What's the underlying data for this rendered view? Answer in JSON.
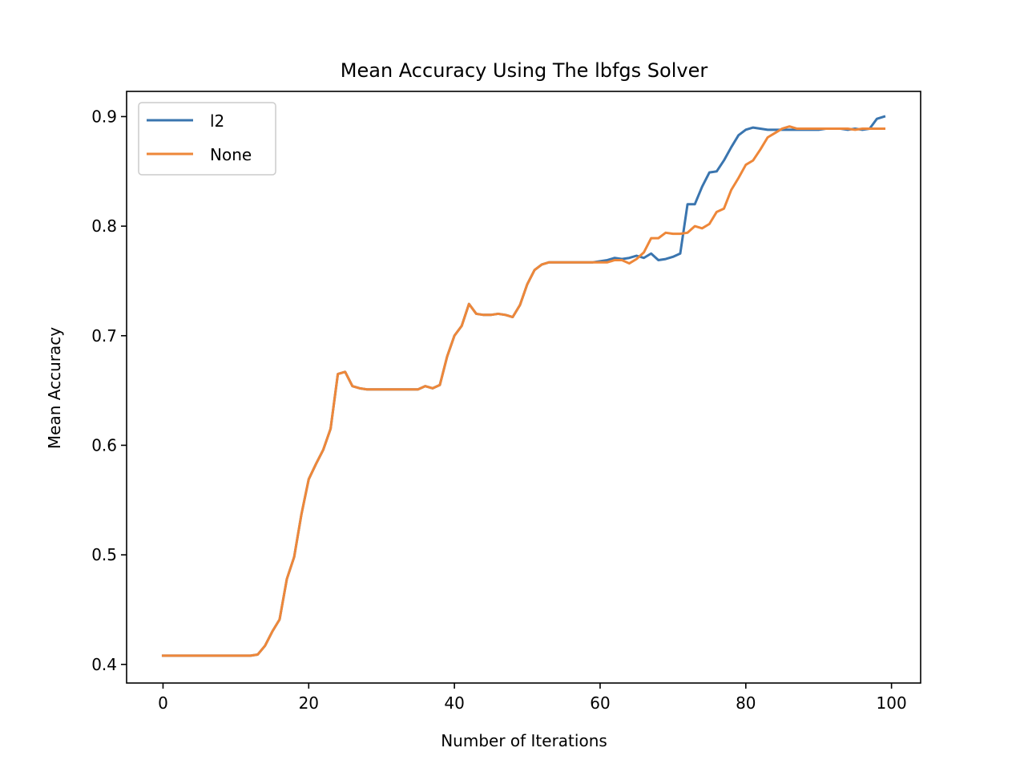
{
  "chart_data": {
    "type": "line",
    "title": "Mean Accuracy Using The lbfgs Solver",
    "xlabel": "Number of Iterations",
    "ylabel": "Mean Accuracy",
    "xlim": [
      -5,
      104
    ],
    "ylim": [
      0.383,
      0.923
    ],
    "xticks": [
      0,
      20,
      40,
      60,
      80,
      100
    ],
    "yticks": [
      0.4,
      0.5,
      0.6,
      0.7,
      0.8,
      0.9
    ],
    "grid": false,
    "legend": "upper left",
    "x_start": 0,
    "series": [
      {
        "name": "l2",
        "color": "#3a75af",
        "values": [
          0.408,
          0.408,
          0.408,
          0.408,
          0.408,
          0.408,
          0.408,
          0.408,
          0.408,
          0.408,
          0.408,
          0.408,
          0.408,
          0.409,
          0.417,
          0.43,
          0.441,
          0.478,
          0.498,
          0.537,
          0.569,
          0.583,
          0.596,
          0.615,
          0.665,
          0.667,
          0.654,
          0.652,
          0.651,
          0.651,
          0.651,
          0.651,
          0.651,
          0.651,
          0.651,
          0.651,
          0.654,
          0.652,
          0.655,
          0.681,
          0.7,
          0.709,
          0.729,
          0.72,
          0.719,
          0.719,
          0.72,
          0.719,
          0.717,
          0.728,
          0.747,
          0.76,
          0.765,
          0.767,
          0.767,
          0.767,
          0.767,
          0.767,
          0.767,
          0.767,
          0.768,
          0.769,
          0.771,
          0.77,
          0.771,
          0.773,
          0.771,
          0.775,
          0.769,
          0.77,
          0.772,
          0.775,
          0.82,
          0.82,
          0.836,
          0.849,
          0.85,
          0.86,
          0.872,
          0.883,
          0.888,
          0.89,
          0.889,
          0.888,
          0.888,
          0.888,
          0.888,
          0.888,
          0.888,
          0.888,
          0.888,
          0.889,
          0.889,
          0.889,
          0.888,
          0.889,
          0.888,
          0.889,
          0.898,
          0.9
        ]
      },
      {
        "name": "None",
        "color": "#ee8739",
        "values": [
          0.408,
          0.408,
          0.408,
          0.408,
          0.408,
          0.408,
          0.408,
          0.408,
          0.408,
          0.408,
          0.408,
          0.408,
          0.408,
          0.409,
          0.417,
          0.43,
          0.441,
          0.478,
          0.498,
          0.537,
          0.569,
          0.583,
          0.596,
          0.615,
          0.665,
          0.667,
          0.654,
          0.652,
          0.651,
          0.651,
          0.651,
          0.651,
          0.651,
          0.651,
          0.651,
          0.651,
          0.654,
          0.652,
          0.655,
          0.681,
          0.7,
          0.709,
          0.729,
          0.72,
          0.719,
          0.719,
          0.72,
          0.719,
          0.717,
          0.728,
          0.747,
          0.76,
          0.765,
          0.767,
          0.767,
          0.767,
          0.767,
          0.767,
          0.767,
          0.767,
          0.767,
          0.767,
          0.769,
          0.769,
          0.766,
          0.77,
          0.776,
          0.789,
          0.789,
          0.794,
          0.793,
          0.793,
          0.794,
          0.8,
          0.798,
          0.802,
          0.813,
          0.816,
          0.833,
          0.844,
          0.856,
          0.86,
          0.87,
          0.881,
          0.885,
          0.889,
          0.891,
          0.889,
          0.889,
          0.889,
          0.889,
          0.889,
          0.889,
          0.889,
          0.889,
          0.888,
          0.889,
          0.889,
          0.889,
          0.889
        ]
      }
    ]
  }
}
